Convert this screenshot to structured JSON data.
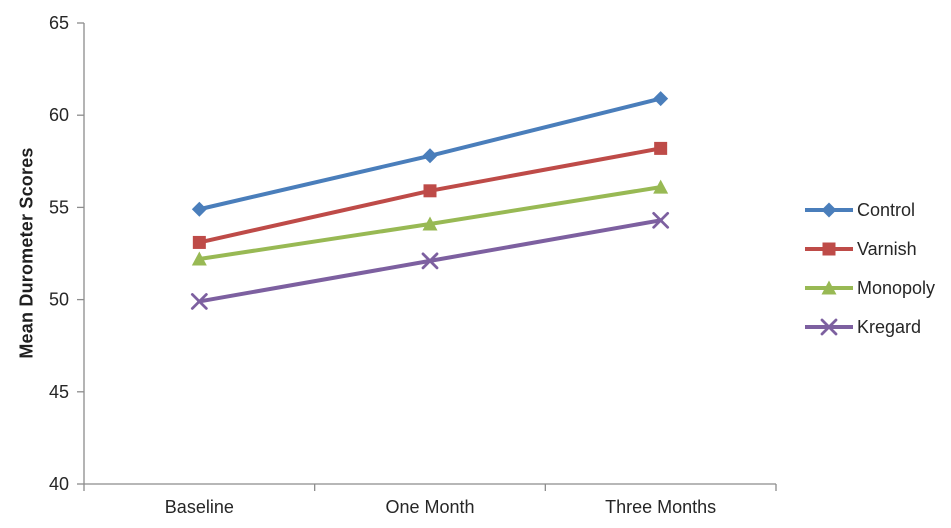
{
  "chart_data": {
    "type": "line",
    "title": "",
    "ylabel": "Mean Durometer Scores",
    "xlabel": "",
    "categories": [
      "Baseline",
      "One Month",
      "Three Months"
    ],
    "series": [
      {
        "name": "Control",
        "marker": "diamond",
        "color": "#4A7EBB",
        "values": [
          54.9,
          57.8,
          60.9
        ]
      },
      {
        "name": "Varnish",
        "marker": "square",
        "color": "#BE4B48",
        "values": [
          53.1,
          55.9,
          58.2
        ]
      },
      {
        "name": "Monopoly",
        "marker": "triangle",
        "color": "#98B954",
        "values": [
          52.2,
          54.1,
          56.1
        ]
      },
      {
        "name": "Kregard",
        "marker": "x",
        "color": "#7D60A0",
        "values": [
          49.9,
          52.1,
          54.3
        ]
      }
    ],
    "ylim": [
      40,
      65
    ],
    "y_ticks": [
      40,
      45,
      50,
      55,
      60,
      65
    ],
    "grid": false,
    "legend_position": "right"
  },
  "style": {
    "axis_color": "#8C8C8C",
    "text_color": "#262626",
    "background": "#FFFFFF"
  }
}
